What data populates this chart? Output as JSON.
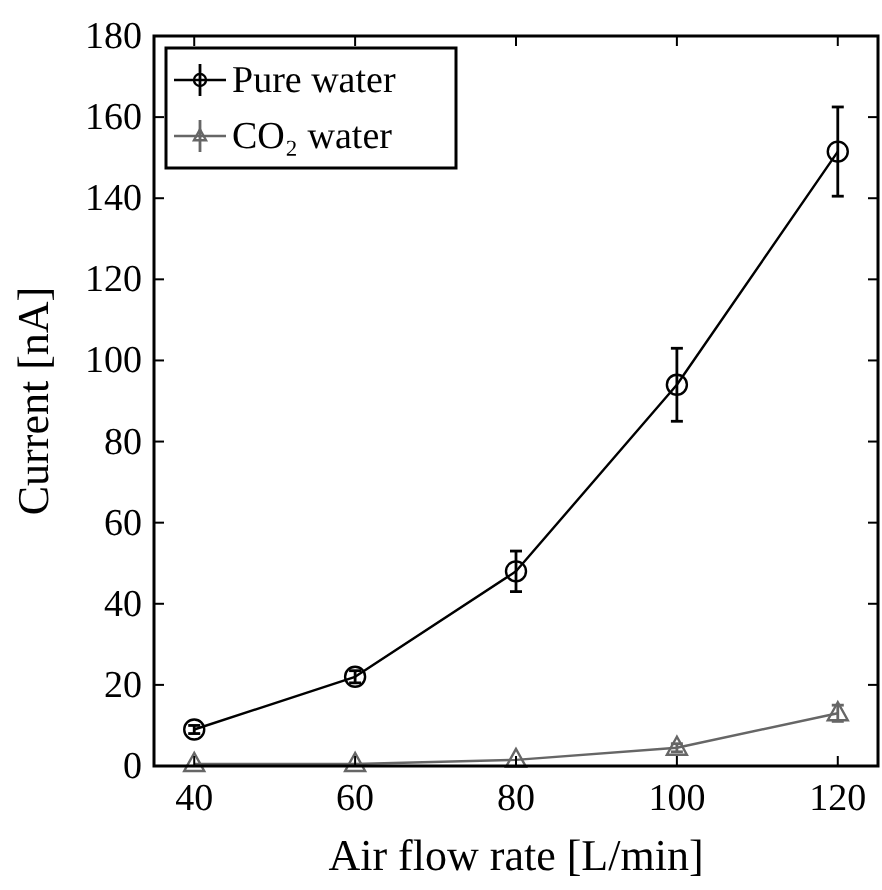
{
  "chart_data": {
    "type": "line",
    "xlabel": "Air flow rate [L/min]",
    "ylabel": "Current [nA]",
    "x": [
      40,
      60,
      80,
      100,
      120
    ],
    "series": [
      {
        "name": "Pure water",
        "color": "#000000",
        "marker": "circle",
        "values": [
          9,
          22,
          48,
          94,
          151.5
        ],
        "errors": [
          1,
          1.5,
          5,
          9,
          11
        ]
      },
      {
        "name": "CO₂ water",
        "color": "#666666",
        "marker": "triangle",
        "values": [
          0.5,
          0.5,
          1.5,
          4.5,
          13
        ],
        "errors": [
          null,
          null,
          null,
          1,
          2
        ]
      }
    ],
    "xlim": [
      35,
      125
    ],
    "xticks": [
      40,
      60,
      80,
      100,
      120
    ],
    "ylim": [
      0,
      180
    ],
    "yticks": [
      0,
      20,
      40,
      60,
      80,
      100,
      120,
      140,
      160,
      180
    ],
    "grid": false,
    "legend": "top left"
  }
}
